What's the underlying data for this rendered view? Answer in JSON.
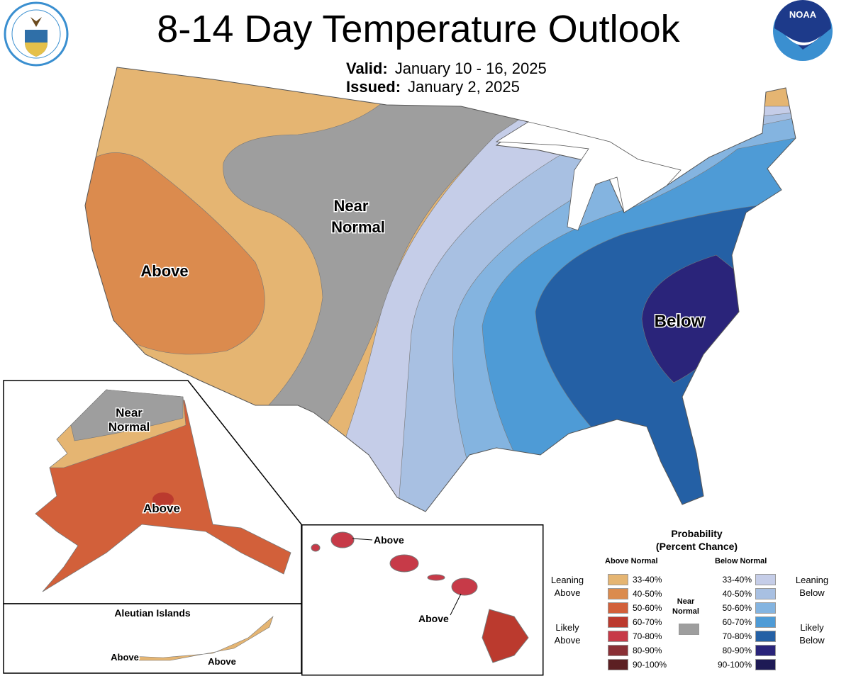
{
  "header": {
    "title": "8-14 Day Temperature Outlook",
    "valid_label": "Valid:",
    "valid_value": "January 10 - 16, 2025",
    "issued_label": "Issued:",
    "issued_value": "January 2, 2025",
    "left_logo": "DEPARTMENT OF COMMERCE · UNITED STATES OF AMERICA",
    "right_logo": "NOAA"
  },
  "map_labels": {
    "conus_near_normal": [
      "Near",
      "Normal"
    ],
    "conus_above": "Above",
    "conus_below": "Below",
    "alaska_near_normal": [
      "Near",
      "Normal"
    ],
    "alaska_above": "Above",
    "aleutian_title": "Aleutian Islands",
    "aleutian_above_1": "Above",
    "aleutian_above_2": "Above",
    "hawaii_above_1": "Above",
    "hawaii_above_2": "Above"
  },
  "legend": {
    "title": "Probability",
    "subtitle": "(Percent Chance)",
    "above_header": "Above Normal",
    "below_header": "Below Normal",
    "near_normal": "Near Normal",
    "near_normal_color": "#9e9e9e",
    "leaning_above": "Leaning Above",
    "likely_above": "Likely Above",
    "leaning_below": "Leaning Below",
    "likely_below": "Likely Below",
    "above": [
      {
        "range": "33-40%",
        "color": "#e5b572"
      },
      {
        "range": "40-50%",
        "color": "#db8b4e"
      },
      {
        "range": "50-60%",
        "color": "#d2603a"
      },
      {
        "range": "60-70%",
        "color": "#bb3a2e"
      },
      {
        "range": "70-80%",
        "color": "#c73a48"
      },
      {
        "range": "80-90%",
        "color": "#8a3036"
      },
      {
        "range": "90-100%",
        "color": "#5c1f22"
      }
    ],
    "below": [
      {
        "range": "33-40%",
        "color": "#c5cde8"
      },
      {
        "range": "40-50%",
        "color": "#a8c0e2"
      },
      {
        "range": "50-60%",
        "color": "#84b4e0"
      },
      {
        "range": "60-70%",
        "color": "#4e9bd6"
      },
      {
        "range": "70-80%",
        "color": "#2460a5"
      },
      {
        "range": "80-90%",
        "color": "#2a247a"
      },
      {
        "range": "90-100%",
        "color": "#1e1a55"
      }
    ]
  }
}
